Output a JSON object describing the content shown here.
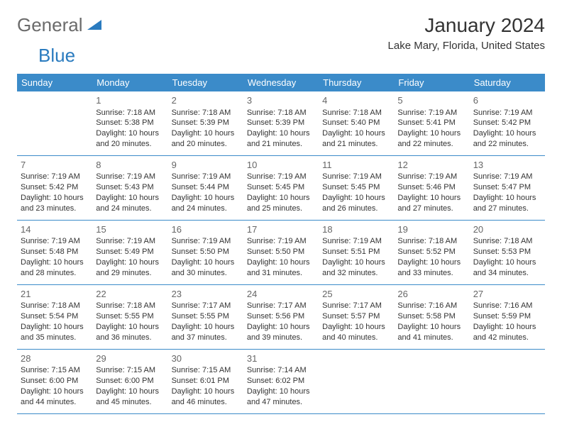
{
  "brand": {
    "text1": "General",
    "text2": "Blue",
    "accent_color": "#2a7bbf",
    "muted_color": "#6b6b6b"
  },
  "title": "January 2024",
  "location": "Lake Mary, Florida, United States",
  "header_bg": "#3b8bc9",
  "header_fg": "#ffffff",
  "border_color": "#3b8bc9",
  "weekdays": [
    "Sunday",
    "Monday",
    "Tuesday",
    "Wednesday",
    "Thursday",
    "Friday",
    "Saturday"
  ],
  "weeks": [
    [
      null,
      {
        "n": "1",
        "sr": "Sunrise: 7:18 AM",
        "ss": "Sunset: 5:38 PM",
        "d1": "Daylight: 10 hours",
        "d2": "and 20 minutes."
      },
      {
        "n": "2",
        "sr": "Sunrise: 7:18 AM",
        "ss": "Sunset: 5:39 PM",
        "d1": "Daylight: 10 hours",
        "d2": "and 20 minutes."
      },
      {
        "n": "3",
        "sr": "Sunrise: 7:18 AM",
        "ss": "Sunset: 5:39 PM",
        "d1": "Daylight: 10 hours",
        "d2": "and 21 minutes."
      },
      {
        "n": "4",
        "sr": "Sunrise: 7:18 AM",
        "ss": "Sunset: 5:40 PM",
        "d1": "Daylight: 10 hours",
        "d2": "and 21 minutes."
      },
      {
        "n": "5",
        "sr": "Sunrise: 7:19 AM",
        "ss": "Sunset: 5:41 PM",
        "d1": "Daylight: 10 hours",
        "d2": "and 22 minutes."
      },
      {
        "n": "6",
        "sr": "Sunrise: 7:19 AM",
        "ss": "Sunset: 5:42 PM",
        "d1": "Daylight: 10 hours",
        "d2": "and 22 minutes."
      }
    ],
    [
      {
        "n": "7",
        "sr": "Sunrise: 7:19 AM",
        "ss": "Sunset: 5:42 PM",
        "d1": "Daylight: 10 hours",
        "d2": "and 23 minutes."
      },
      {
        "n": "8",
        "sr": "Sunrise: 7:19 AM",
        "ss": "Sunset: 5:43 PM",
        "d1": "Daylight: 10 hours",
        "d2": "and 24 minutes."
      },
      {
        "n": "9",
        "sr": "Sunrise: 7:19 AM",
        "ss": "Sunset: 5:44 PM",
        "d1": "Daylight: 10 hours",
        "d2": "and 24 minutes."
      },
      {
        "n": "10",
        "sr": "Sunrise: 7:19 AM",
        "ss": "Sunset: 5:45 PM",
        "d1": "Daylight: 10 hours",
        "d2": "and 25 minutes."
      },
      {
        "n": "11",
        "sr": "Sunrise: 7:19 AM",
        "ss": "Sunset: 5:45 PM",
        "d1": "Daylight: 10 hours",
        "d2": "and 26 minutes."
      },
      {
        "n": "12",
        "sr": "Sunrise: 7:19 AM",
        "ss": "Sunset: 5:46 PM",
        "d1": "Daylight: 10 hours",
        "d2": "and 27 minutes."
      },
      {
        "n": "13",
        "sr": "Sunrise: 7:19 AM",
        "ss": "Sunset: 5:47 PM",
        "d1": "Daylight: 10 hours",
        "d2": "and 27 minutes."
      }
    ],
    [
      {
        "n": "14",
        "sr": "Sunrise: 7:19 AM",
        "ss": "Sunset: 5:48 PM",
        "d1": "Daylight: 10 hours",
        "d2": "and 28 minutes."
      },
      {
        "n": "15",
        "sr": "Sunrise: 7:19 AM",
        "ss": "Sunset: 5:49 PM",
        "d1": "Daylight: 10 hours",
        "d2": "and 29 minutes."
      },
      {
        "n": "16",
        "sr": "Sunrise: 7:19 AM",
        "ss": "Sunset: 5:50 PM",
        "d1": "Daylight: 10 hours",
        "d2": "and 30 minutes."
      },
      {
        "n": "17",
        "sr": "Sunrise: 7:19 AM",
        "ss": "Sunset: 5:50 PM",
        "d1": "Daylight: 10 hours",
        "d2": "and 31 minutes."
      },
      {
        "n": "18",
        "sr": "Sunrise: 7:19 AM",
        "ss": "Sunset: 5:51 PM",
        "d1": "Daylight: 10 hours",
        "d2": "and 32 minutes."
      },
      {
        "n": "19",
        "sr": "Sunrise: 7:18 AM",
        "ss": "Sunset: 5:52 PM",
        "d1": "Daylight: 10 hours",
        "d2": "and 33 minutes."
      },
      {
        "n": "20",
        "sr": "Sunrise: 7:18 AM",
        "ss": "Sunset: 5:53 PM",
        "d1": "Daylight: 10 hours",
        "d2": "and 34 minutes."
      }
    ],
    [
      {
        "n": "21",
        "sr": "Sunrise: 7:18 AM",
        "ss": "Sunset: 5:54 PM",
        "d1": "Daylight: 10 hours",
        "d2": "and 35 minutes."
      },
      {
        "n": "22",
        "sr": "Sunrise: 7:18 AM",
        "ss": "Sunset: 5:55 PM",
        "d1": "Daylight: 10 hours",
        "d2": "and 36 minutes."
      },
      {
        "n": "23",
        "sr": "Sunrise: 7:17 AM",
        "ss": "Sunset: 5:55 PM",
        "d1": "Daylight: 10 hours",
        "d2": "and 37 minutes."
      },
      {
        "n": "24",
        "sr": "Sunrise: 7:17 AM",
        "ss": "Sunset: 5:56 PM",
        "d1": "Daylight: 10 hours",
        "d2": "and 39 minutes."
      },
      {
        "n": "25",
        "sr": "Sunrise: 7:17 AM",
        "ss": "Sunset: 5:57 PM",
        "d1": "Daylight: 10 hours",
        "d2": "and 40 minutes."
      },
      {
        "n": "26",
        "sr": "Sunrise: 7:16 AM",
        "ss": "Sunset: 5:58 PM",
        "d1": "Daylight: 10 hours",
        "d2": "and 41 minutes."
      },
      {
        "n": "27",
        "sr": "Sunrise: 7:16 AM",
        "ss": "Sunset: 5:59 PM",
        "d1": "Daylight: 10 hours",
        "d2": "and 42 minutes."
      }
    ],
    [
      {
        "n": "28",
        "sr": "Sunrise: 7:15 AM",
        "ss": "Sunset: 6:00 PM",
        "d1": "Daylight: 10 hours",
        "d2": "and 44 minutes."
      },
      {
        "n": "29",
        "sr": "Sunrise: 7:15 AM",
        "ss": "Sunset: 6:00 PM",
        "d1": "Daylight: 10 hours",
        "d2": "and 45 minutes."
      },
      {
        "n": "30",
        "sr": "Sunrise: 7:15 AM",
        "ss": "Sunset: 6:01 PM",
        "d1": "Daylight: 10 hours",
        "d2": "and 46 minutes."
      },
      {
        "n": "31",
        "sr": "Sunrise: 7:14 AM",
        "ss": "Sunset: 6:02 PM",
        "d1": "Daylight: 10 hours",
        "d2": "and 47 minutes."
      },
      null,
      null,
      null
    ]
  ]
}
